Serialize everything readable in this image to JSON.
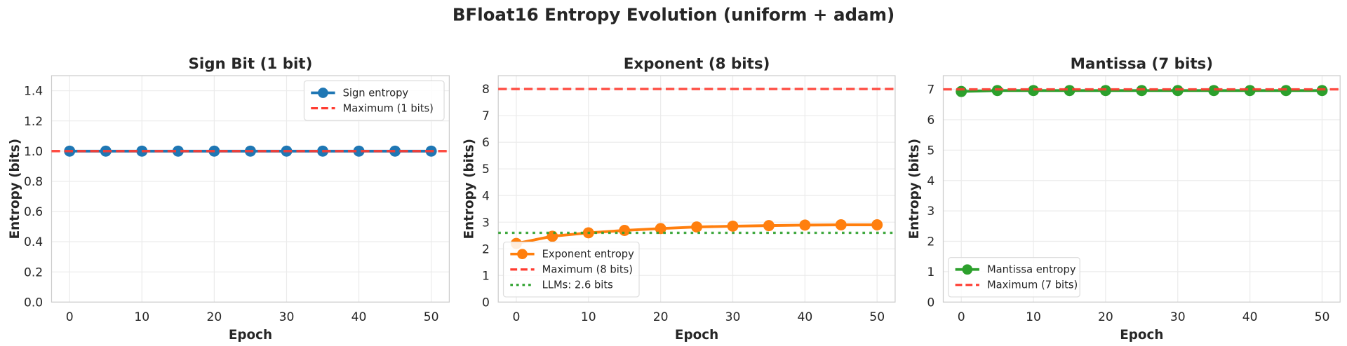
{
  "chart_data": {
    "suptitle": "BFloat16 Entropy Evolution (uniform + adam)",
    "panels": [
      {
        "type": "line",
        "title": "Sign Bit (1 bit)",
        "xlabel": "Epoch",
        "ylabel": "Entropy (bits)",
        "xlim": [
          -2.5,
          52.5
        ],
        "ylim": [
          0,
          1.5
        ],
        "xticks": [
          0,
          10,
          20,
          30,
          40,
          50
        ],
        "yticks": [
          "0.0",
          "0.2",
          "0.4",
          "0.6",
          "0.8",
          "1.0",
          "1.2",
          "1.4"
        ],
        "grid": true,
        "legend_position": "top-right",
        "series": [
          {
            "name": "Sign entropy",
            "color": "#1f77b4",
            "style": "line-marker",
            "x": [
              0,
              5,
              10,
              15,
              20,
              25,
              30,
              35,
              40,
              45,
              50
            ],
            "y": [
              1.0,
              1.0,
              1.0,
              1.0,
              1.0,
              1.0,
              1.0,
              1.0,
              1.0,
              1.0,
              1.0
            ]
          }
        ],
        "hlines": [
          {
            "name": "Maximum (1 bits)",
            "y": 1,
            "color": "#ff3b30",
            "style": "dashed"
          }
        ]
      },
      {
        "type": "line",
        "title": "Exponent (8 bits)",
        "xlabel": "Epoch",
        "ylabel": "Entropy (bits)",
        "xlim": [
          -2.5,
          52.5
        ],
        "ylim": [
          0,
          8.5
        ],
        "xticks": [
          0,
          10,
          20,
          30,
          40,
          50
        ],
        "yticks": [
          "0",
          "1",
          "2",
          "3",
          "4",
          "5",
          "6",
          "7",
          "8"
        ],
        "grid": true,
        "legend_position": "lower-left",
        "series": [
          {
            "name": "Exponent entropy",
            "color": "#ff7f0e",
            "style": "line-marker",
            "x": [
              0,
              5,
              10,
              15,
              20,
              25,
              30,
              35,
              40,
              45,
              50
            ],
            "y": [
              2.2,
              2.47,
              2.6,
              2.69,
              2.76,
              2.82,
              2.85,
              2.87,
              2.89,
              2.9,
              2.9
            ]
          }
        ],
        "hlines": [
          {
            "name": "Maximum (8 bits)",
            "y": 8,
            "color": "#ff3b30",
            "style": "dashed"
          },
          {
            "name": "LLMs: 2.6 bits",
            "y": 2.6,
            "color": "#2ca02c",
            "style": "dotted"
          }
        ]
      },
      {
        "type": "line",
        "title": "Mantissa (7 bits)",
        "xlabel": "Epoch",
        "ylabel": "Entropy (bits)",
        "xlim": [
          -2.5,
          52.5
        ],
        "ylim": [
          0,
          7.45
        ],
        "xticks": [
          0,
          10,
          20,
          30,
          40,
          50
        ],
        "yticks": [
          "0",
          "1",
          "2",
          "3",
          "4",
          "5",
          "6",
          "7"
        ],
        "grid": true,
        "legend_position": "lower-left",
        "series": [
          {
            "name": "Mantissa entropy",
            "color": "#2ca02c",
            "style": "line-marker",
            "x": [
              0,
              5,
              10,
              15,
              20,
              25,
              30,
              35,
              40,
              45,
              50
            ],
            "y": [
              6.93,
              6.96,
              6.96,
              6.96,
              6.96,
              6.96,
              6.96,
              6.96,
              6.96,
              6.96,
              6.96
            ]
          }
        ],
        "hlines": [
          {
            "name": "Maximum (7 bits)",
            "y": 7,
            "color": "#ff3b30",
            "style": "dashed"
          }
        ]
      }
    ]
  }
}
